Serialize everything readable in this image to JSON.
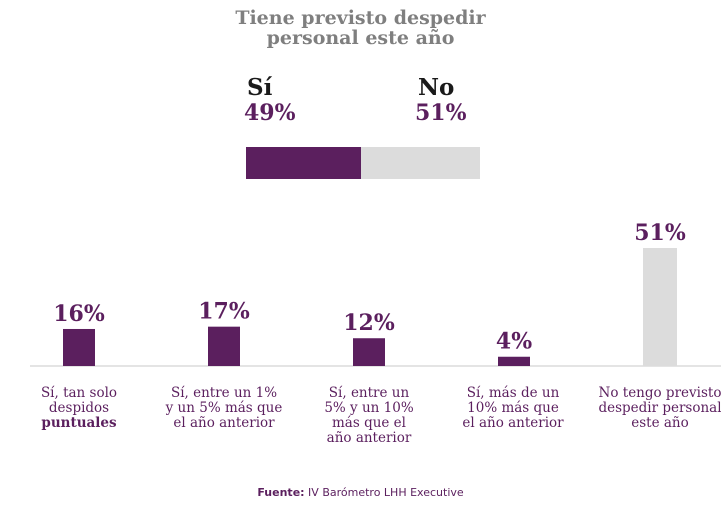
{
  "chart_data": [
    {
      "type": "bar",
      "title": "Tiene previsto despedir personal este año",
      "categories": [
        "Sí",
        "No"
      ],
      "values": [
        49,
        51
      ],
      "value_labels": [
        "49%",
        "51%"
      ],
      "colors": [
        "#5b1f5e",
        "#dcdcdc"
      ]
    },
    {
      "type": "bar",
      "categories": [
        "Sí, tan solo despidos puntuales",
        "Sí, entre un 1% y un 5% más que el año anterior",
        "Sí, entre un 5% y un 10% más que el año anterior",
        "Sí, más de un 10% más que el año anterior",
        "No tengo previsto despedir personal este año"
      ],
      "values": [
        16,
        17,
        12,
        4,
        51
      ],
      "value_labels": [
        "16%",
        "17%",
        "12%",
        "4%",
        "51%"
      ],
      "colors": [
        "#5b1f5e",
        "#5b1f5e",
        "#5b1f5e",
        "#5b1f5e",
        "#dcdcdc"
      ],
      "ylim": [
        0,
        51
      ]
    }
  ],
  "labels": {
    "title_line1": "Tiene previsto despedir",
    "title_line2": "personal este año",
    "si": "Sí",
    "si_pct": "49%",
    "no": "No",
    "no_pct": "51%",
    "cat": [
      [
        "Sí, tan solo",
        "despidos",
        "puntuales"
      ],
      [
        "Sí, entre un 1%",
        "y un 5% más que",
        "el año anterior"
      ],
      [
        "Sí, entre un",
        "5% y un 10%",
        "más que el",
        "año anterior"
      ],
      [
        "Sí, más de un",
        "10% más que",
        "el año anterior"
      ],
      [
        "No tengo previsto",
        "despedir personal",
        "este año"
      ]
    ]
  },
  "source": {
    "label": "Fuente:",
    "text": " IV Barómetro LHH Executive"
  }
}
